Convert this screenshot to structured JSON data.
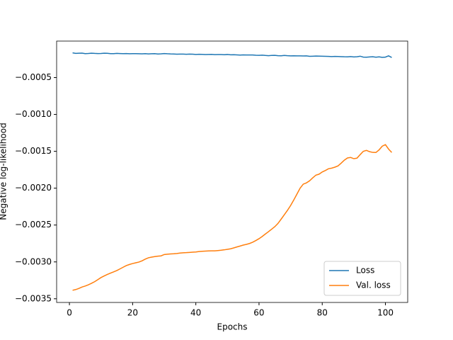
{
  "chart_data": {
    "type": "line",
    "xlabel": "Epochs",
    "ylabel": "Negative log-likelihood",
    "x": [
      1,
      2,
      3,
      4,
      5,
      6,
      7,
      8,
      9,
      10,
      11,
      12,
      13,
      14,
      15,
      16,
      17,
      18,
      19,
      20,
      21,
      22,
      23,
      24,
      25,
      26,
      27,
      28,
      29,
      30,
      31,
      32,
      33,
      34,
      35,
      36,
      37,
      38,
      39,
      40,
      41,
      42,
      43,
      44,
      45,
      46,
      47,
      48,
      49,
      50,
      51,
      52,
      53,
      54,
      55,
      56,
      57,
      58,
      59,
      60,
      61,
      62,
      63,
      64,
      65,
      66,
      67,
      68,
      69,
      70,
      71,
      72,
      73,
      74,
      75,
      76,
      77,
      78,
      79,
      80,
      81,
      82,
      83,
      84,
      85,
      86,
      87,
      88,
      89,
      90,
      91,
      92,
      93,
      94,
      95,
      96,
      97,
      98,
      99,
      100,
      101,
      102
    ],
    "series": [
      {
        "name": "Loss",
        "color": "#1f77b4",
        "values": [
          -0.000165,
          -0.000172,
          -0.00017,
          -0.000168,
          -0.000175,
          -0.000173,
          -0.000169,
          -0.000172,
          -0.000174,
          -0.000173,
          -0.00017,
          -0.000171,
          -0.000176,
          -0.000175,
          -0.000172,
          -0.000174,
          -0.000176,
          -0.000174,
          -0.000177,
          -0.000175,
          -0.000176,
          -0.000177,
          -0.000178,
          -0.000176,
          -0.000179,
          -0.000177,
          -0.000176,
          -0.00018,
          -0.000178,
          -0.000174,
          -0.000177,
          -0.000179,
          -0.00018,
          -0.000183,
          -0.000181,
          -0.000182,
          -0.000184,
          -0.000181,
          -0.000183,
          -0.000186,
          -0.000184,
          -0.000185,
          -0.000188,
          -0.000186,
          -0.000185,
          -0.000189,
          -0.000187,
          -0.000188,
          -0.00019,
          -0.000187,
          -0.000191,
          -0.00019,
          -0.000192,
          -0.000195,
          -0.000192,
          -0.000193,
          -0.000194,
          -0.000193,
          -0.000197,
          -0.000198,
          -0.000196,
          -0.0002,
          -0.000203,
          -0.000199,
          -0.000198,
          -0.000203,
          -0.000204,
          -0.0002,
          -0.000203,
          -0.000205,
          -0.000204,
          -0.000206,
          -0.000205,
          -0.000207,
          -0.000206,
          -0.000212,
          -0.00021,
          -0.000208,
          -0.000209,
          -0.00021,
          -0.000211,
          -0.000213,
          -0.000215,
          -0.000213,
          -0.000214,
          -0.000216,
          -0.000218,
          -0.000219,
          -0.000215,
          -0.00022,
          -0.000218,
          -0.00021,
          -0.000222,
          -0.000224,
          -0.00022,
          -0.000218,
          -0.000223,
          -0.000219,
          -0.000226,
          -0.000222,
          -0.000205,
          -0.000228
        ]
      },
      {
        "name": "Val. loss",
        "color": "#ff7f0e",
        "values": [
          -0.003385,
          -0.003375,
          -0.00336,
          -0.00334,
          -0.003327,
          -0.00331,
          -0.00329,
          -0.003268,
          -0.00324,
          -0.003212,
          -0.00319,
          -0.00317,
          -0.003152,
          -0.003135,
          -0.003117,
          -0.003095,
          -0.003072,
          -0.00305,
          -0.003035,
          -0.003022,
          -0.003012,
          -0.003002,
          -0.002985,
          -0.002962,
          -0.002944,
          -0.002935,
          -0.002928,
          -0.002922,
          -0.002918,
          -0.0029,
          -0.002895,
          -0.002892,
          -0.00289,
          -0.002886,
          -0.00288,
          -0.002876,
          -0.002874,
          -0.002871,
          -0.002868,
          -0.002865,
          -0.00286,
          -0.002856,
          -0.002853,
          -0.002851,
          -0.00285,
          -0.00285,
          -0.002846,
          -0.002842,
          -0.002836,
          -0.002829,
          -0.002822,
          -0.00281,
          -0.002797,
          -0.002785,
          -0.002772,
          -0.002762,
          -0.00275,
          -0.002733,
          -0.00271,
          -0.002685,
          -0.002655,
          -0.002622,
          -0.00259,
          -0.002556,
          -0.002522,
          -0.002478,
          -0.00242,
          -0.00236,
          -0.0023,
          -0.002235,
          -0.00216,
          -0.00208,
          -0.002,
          -0.001945,
          -0.001928,
          -0.0019,
          -0.00186,
          -0.001823,
          -0.00181,
          -0.00178,
          -0.00176,
          -0.001736,
          -0.001728,
          -0.001715,
          -0.001698,
          -0.00166,
          -0.00162,
          -0.00159,
          -0.001583,
          -0.0016,
          -0.001593,
          -0.001545,
          -0.0015,
          -0.001487,
          -0.001505,
          -0.001515,
          -0.001516,
          -0.00148,
          -0.00143,
          -0.00141,
          -0.00147,
          -0.001516
        ]
      }
    ],
    "xlim": [
      -4.05,
      107.05
    ],
    "xticks": [
      0,
      20,
      40,
      60,
      80,
      100
    ],
    "ylim": [
      -0.00355,
      -5e-06
    ],
    "yticks": [
      {
        "value": -0.0035,
        "label": "−0.0035"
      },
      {
        "value": -0.003,
        "label": "−0.0030"
      },
      {
        "value": -0.0025,
        "label": "−0.0025"
      },
      {
        "value": -0.002,
        "label": "−0.0020"
      },
      {
        "value": -0.0015,
        "label": "−0.0015"
      },
      {
        "value": -0.001,
        "label": "−0.0010"
      },
      {
        "value": -0.0005,
        "label": "−0.0005"
      }
    ],
    "legend": "lower right",
    "grid": false
  }
}
